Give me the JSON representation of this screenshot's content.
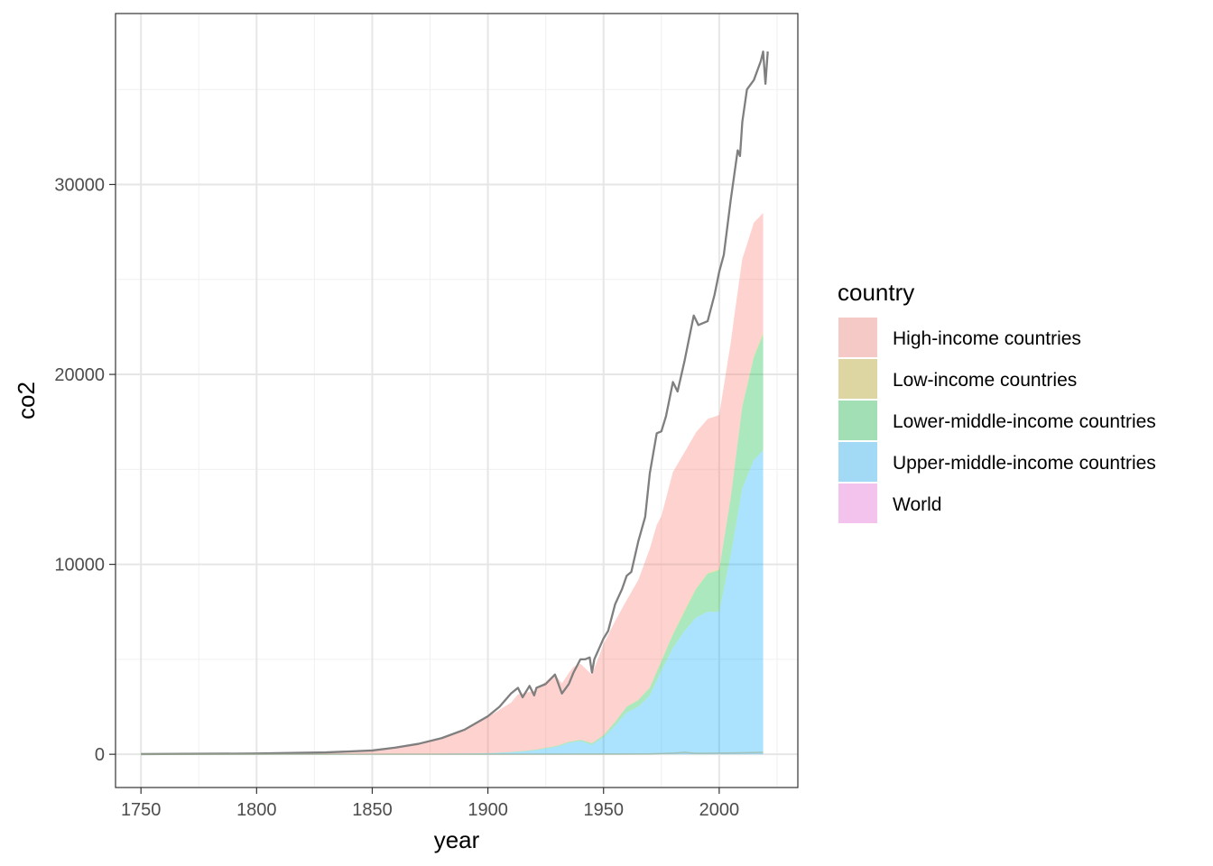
{
  "chart_data": {
    "type": "area",
    "xlabel": "year",
    "ylabel": "co2",
    "xlim": [
      1739,
      2034
    ],
    "ylim": [
      -1750,
      39000
    ],
    "x_ticks": [
      1750,
      1800,
      1850,
      1900,
      1950,
      2000
    ],
    "y_ticks": [
      0,
      10000,
      20000,
      30000
    ],
    "grid": true,
    "legend": {
      "title": "country",
      "position": "right"
    },
    "series": [
      {
        "name": "High-income countries",
        "color": "#F8766D",
        "x": [
          1750,
          1800,
          1830,
          1850,
          1870,
          1880,
          1890,
          1900,
          1910,
          1913,
          1920,
          1929,
          1932,
          1937,
          1940,
          1945,
          1950,
          1955,
          1960,
          1965,
          1970,
          1973,
          1975,
          1980,
          1985,
          1990,
          1995,
          2000,
          2005,
          2007,
          2010,
          2015,
          2019
        ],
        "values": [
          9,
          40,
          100,
          200,
          550,
          800,
          1200,
          1900,
          2600,
          3000,
          3100,
          3800,
          3200,
          3900,
          4000,
          3600,
          4800,
          5300,
          5600,
          6300,
          7300,
          7700,
          7600,
          8500,
          8300,
          8200,
          8100,
          8100,
          8100,
          8000,
          7700,
          7000,
          6300
        ]
      },
      {
        "name": "Low-income countries",
        "color": "#B79F00",
        "x": [
          1750,
          1900,
          1950,
          1970,
          1980,
          1985,
          1990,
          2000,
          2010,
          2019
        ],
        "values": [
          0,
          0,
          10,
          20,
          60,
          100,
          50,
          60,
          80,
          100
        ]
      },
      {
        "name": "Lower-middle-income countries",
        "color": "#00BA38",
        "x": [
          1750,
          1900,
          1920,
          1940,
          1950,
          1955,
          1960,
          1965,
          1970,
          1975,
          1980,
          1985,
          1990,
          1995,
          2000,
          2005,
          2010,
          2015,
          2019
        ],
        "values": [
          0,
          10,
          30,
          60,
          100,
          200,
          300,
          350,
          400,
          500,
          700,
          1000,
          1500,
          2000,
          2200,
          3000,
          4300,
          5400,
          6100
        ]
      },
      {
        "name": "Upper-middle-income countries",
        "color": "#00A9FF",
        "x": [
          1750,
          1850,
          1880,
          1900,
          1910,
          1920,
          1930,
          1935,
          1940,
          1945,
          1950,
          1955,
          1960,
          1965,
          1970,
          1975,
          1980,
          1985,
          1990,
          1995,
          2000,
          2005,
          2010,
          2015,
          2019
        ],
        "values": [
          0,
          0,
          20,
          50,
          100,
          200,
          400,
          600,
          700,
          500,
          900,
          1500,
          2200,
          2500,
          3100,
          4400,
          5600,
          6500,
          7200,
          7500,
          7500,
          10500,
          14000,
          15500,
          16000
        ]
      },
      {
        "name": "World",
        "color": "#F564E3",
        "x": [
          1750,
          1800,
          1830,
          1850,
          1860,
          1870,
          1880,
          1890,
          1900,
          1905,
          1910,
          1913,
          1915,
          1918,
          1920,
          1921,
          1925,
          1929,
          1932,
          1935,
          1937,
          1940,
          1942,
          1944,
          1945,
          1946,
          1950,
          1952,
          1955,
          1958,
          1960,
          1962,
          1965,
          1968,
          1970,
          1973,
          1975,
          1977,
          1979,
          1980,
          1982,
          1985,
          1987,
          1989,
          1991,
          1995,
          1998,
          2000,
          2002,
          2005,
          2008,
          2009,
          2010,
          2012,
          2015,
          2018,
          2019,
          2020,
          2021
        ],
        "values": [
          9,
          40,
          100,
          200,
          350,
          550,
          850,
          1300,
          2000,
          2500,
          3200,
          3500,
          3000,
          3600,
          3100,
          3500,
          3700,
          4200,
          3200,
          3700,
          4300,
          5000,
          5000,
          5100,
          4300,
          5000,
          6100,
          6500,
          7900,
          8700,
          9400,
          9600,
          11200,
          12500,
          14800,
          16900,
          17000,
          17800,
          19000,
          19600,
          19100,
          20700,
          21900,
          23100,
          22600,
          22800,
          24200,
          25400,
          26300,
          29200,
          31800,
          31500,
          33300,
          35000,
          35500,
          36500,
          37000,
          35300,
          37000
        ]
      }
    ]
  }
}
